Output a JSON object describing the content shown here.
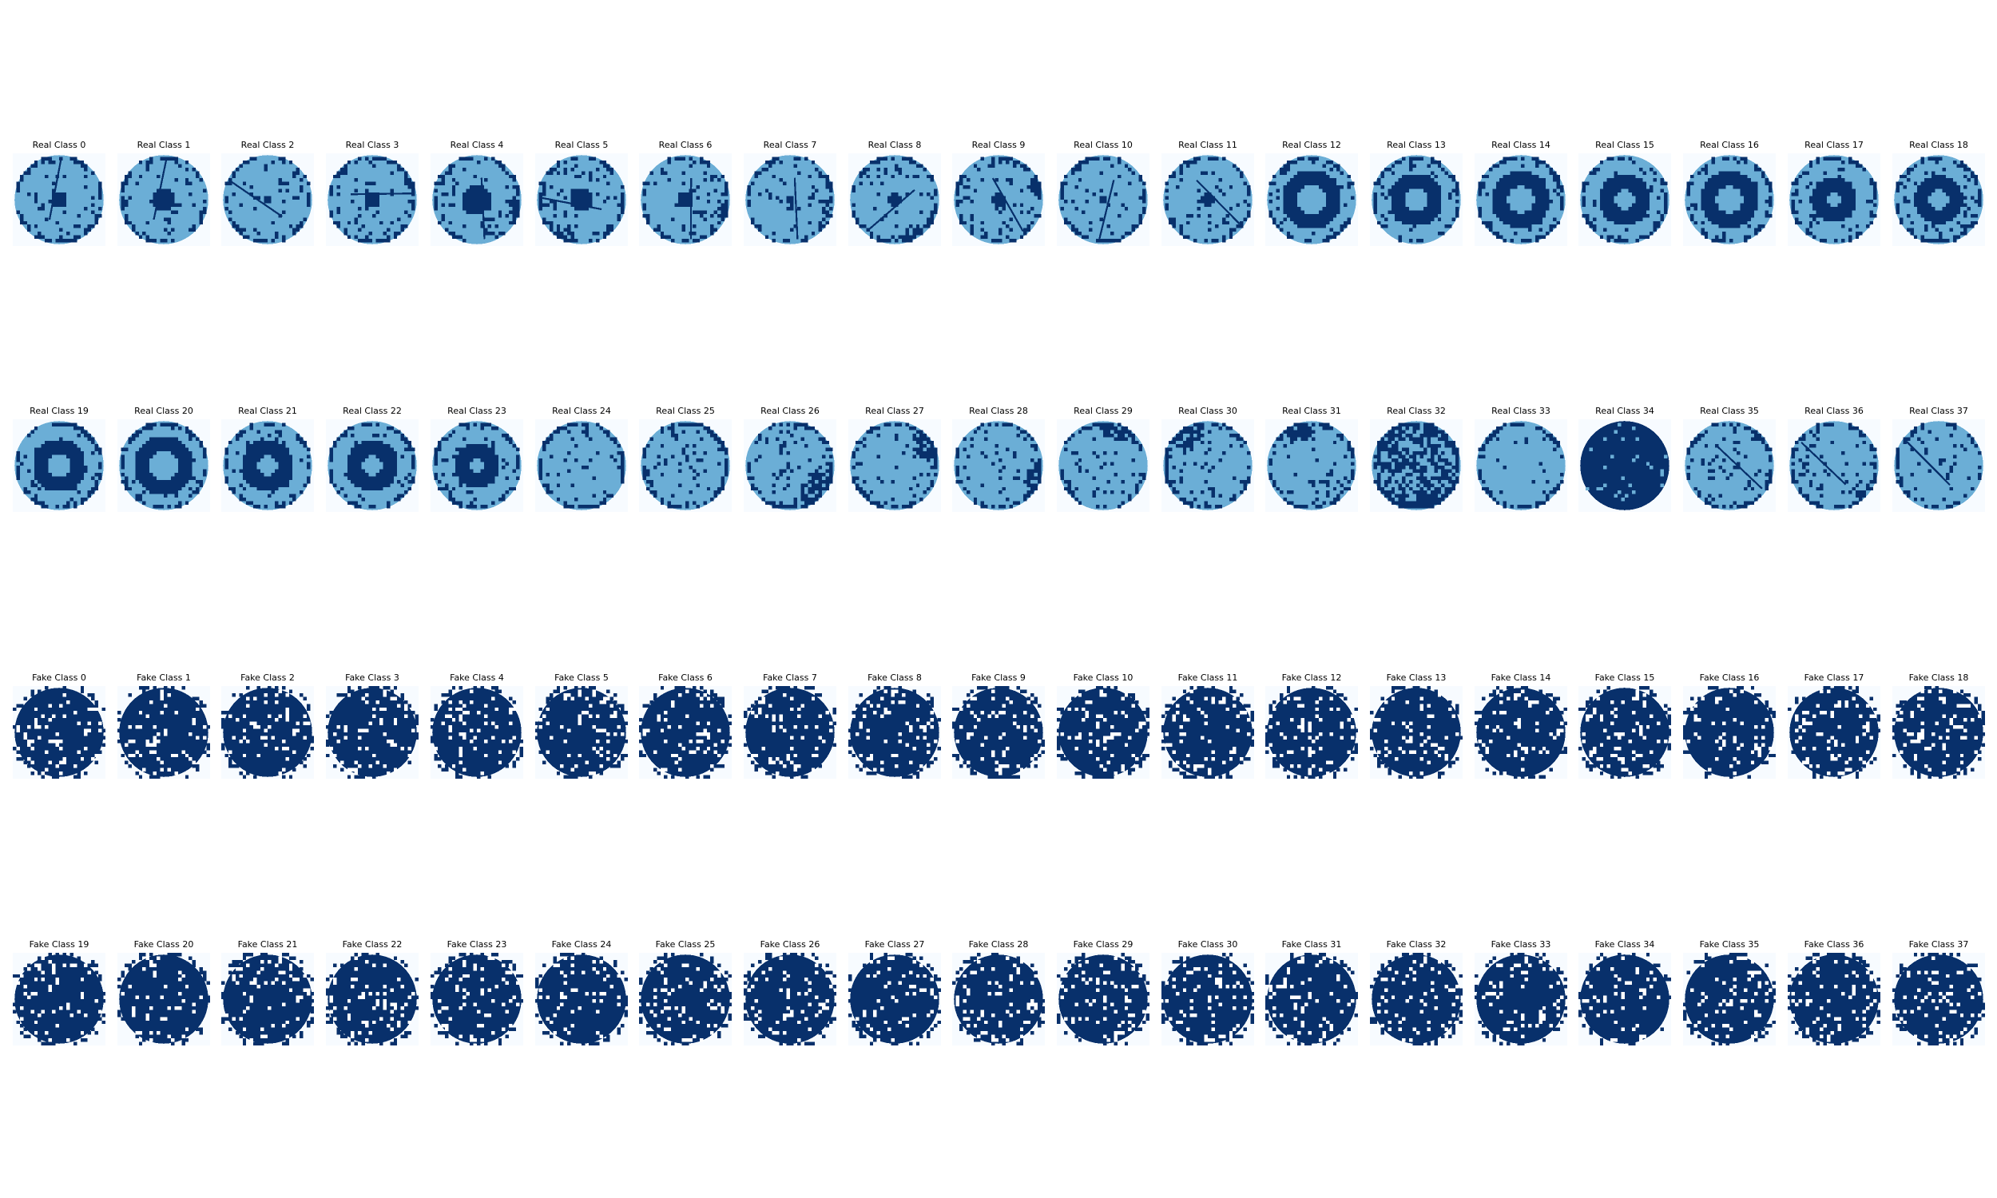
{
  "panels": [
    {
      "title": "Real Class 0",
      "kind": "real",
      "pattern": "center",
      "size": 0.18
    },
    {
      "title": "Real Class 1",
      "kind": "real",
      "pattern": "center",
      "size": 0.28
    },
    {
      "title": "Real Class 2",
      "kind": "real",
      "pattern": "center",
      "size": 0.1
    },
    {
      "title": "Real Class 3",
      "kind": "real",
      "pattern": "center",
      "size": 0.2
    },
    {
      "title": "Real Class 4",
      "kind": "real",
      "pattern": "center-edge",
      "size": 0.34
    },
    {
      "title": "Real Class 5",
      "kind": "real",
      "pattern": "center-edge",
      "size": 0.24
    },
    {
      "title": "Real Class 6",
      "kind": "real",
      "pattern": "center-edge",
      "size": 0.18
    },
    {
      "title": "Real Class 7",
      "kind": "real",
      "pattern": "center-edge",
      "size": 0.12
    },
    {
      "title": "Real Class 8",
      "kind": "real",
      "pattern": "center-edge",
      "size": 0.16
    },
    {
      "title": "Real Class 9",
      "kind": "real",
      "pattern": "center-edge",
      "size": 0.14
    },
    {
      "title": "Real Class 10",
      "kind": "real",
      "pattern": "center",
      "size": 0.12
    },
    {
      "title": "Real Class 11",
      "kind": "real",
      "pattern": "center",
      "size": 0.14
    },
    {
      "title": "Real Class 12",
      "kind": "real",
      "pattern": "donut",
      "size": 0.5
    },
    {
      "title": "Real Class 13",
      "kind": "real",
      "pattern": "donut",
      "size": 0.42
    },
    {
      "title": "Real Class 14",
      "kind": "real",
      "pattern": "donut",
      "size": 0.48
    },
    {
      "title": "Real Class 15",
      "kind": "real",
      "pattern": "donut",
      "size": 0.4
    },
    {
      "title": "Real Class 16",
      "kind": "real",
      "pattern": "donut",
      "size": 0.46
    },
    {
      "title": "Real Class 17",
      "kind": "real",
      "pattern": "donut",
      "size": 0.34
    },
    {
      "title": "Real Class 18",
      "kind": "real",
      "pattern": "donut",
      "size": 0.38
    },
    {
      "title": "Real Class 19",
      "kind": "real",
      "pattern": "donut",
      "size": 0.42
    },
    {
      "title": "Real Class 20",
      "kind": "real",
      "pattern": "donut",
      "size": 0.5
    },
    {
      "title": "Real Class 21",
      "kind": "real",
      "pattern": "donut",
      "size": 0.4
    },
    {
      "title": "Real Class 22",
      "kind": "real",
      "pattern": "donut",
      "size": 0.4
    },
    {
      "title": "Real Class 23",
      "kind": "real",
      "pattern": "donut",
      "size": 0.34
    },
    {
      "title": "Real Class 24",
      "kind": "real",
      "pattern": "none",
      "size": 0
    },
    {
      "title": "Real Class 25",
      "kind": "real",
      "pattern": "none",
      "size": 0
    },
    {
      "title": "Real Class 26",
      "kind": "real",
      "pattern": "edge",
      "size": 0.4
    },
    {
      "title": "Real Class 27",
      "kind": "real",
      "pattern": "edge",
      "size": 0.3
    },
    {
      "title": "Real Class 28",
      "kind": "real",
      "pattern": "edge",
      "size": 0.2
    },
    {
      "title": "Real Class 29",
      "kind": "real",
      "pattern": "edge",
      "size": 0.25
    },
    {
      "title": "Real Class 30",
      "kind": "real",
      "pattern": "edge",
      "size": 0.3
    },
    {
      "title": "Real Class 31",
      "kind": "real",
      "pattern": "edge",
      "size": 0.25
    },
    {
      "title": "Real Class 32",
      "kind": "real",
      "pattern": "random",
      "size": 0.5
    },
    {
      "title": "Real Class 33",
      "kind": "real",
      "pattern": "near-full",
      "size": 0
    },
    {
      "title": "Real Class 34",
      "kind": "real",
      "pattern": "full",
      "size": 1
    },
    {
      "title": "Real Class 35",
      "kind": "real",
      "pattern": "scratch",
      "size": 0.2
    },
    {
      "title": "Real Class 36",
      "kind": "real",
      "pattern": "scratch",
      "size": 0.2
    },
    {
      "title": "Real Class 37",
      "kind": "real",
      "pattern": "scratch",
      "size": 0.2
    },
    {
      "title": "Fake Class 0",
      "kind": "fake"
    },
    {
      "title": "Fake Class 1",
      "kind": "fake"
    },
    {
      "title": "Fake Class 2",
      "kind": "fake"
    },
    {
      "title": "Fake Class 3",
      "kind": "fake"
    },
    {
      "title": "Fake Class 4",
      "kind": "fake"
    },
    {
      "title": "Fake Class 5",
      "kind": "fake"
    },
    {
      "title": "Fake Class 6",
      "kind": "fake"
    },
    {
      "title": "Fake Class 7",
      "kind": "fake"
    },
    {
      "title": "Fake Class 8",
      "kind": "fake"
    },
    {
      "title": "Fake Class 9",
      "kind": "fake"
    },
    {
      "title": "Fake Class 10",
      "kind": "fake"
    },
    {
      "title": "Fake Class 11",
      "kind": "fake"
    },
    {
      "title": "Fake Class 12",
      "kind": "fake"
    },
    {
      "title": "Fake Class 13",
      "kind": "fake"
    },
    {
      "title": "Fake Class 14",
      "kind": "fake"
    },
    {
      "title": "Fake Class 15",
      "kind": "fake"
    },
    {
      "title": "Fake Class 16",
      "kind": "fake"
    },
    {
      "title": "Fake Class 17",
      "kind": "fake"
    },
    {
      "title": "Fake Class 18",
      "kind": "fake"
    },
    {
      "title": "Fake Class 19",
      "kind": "fake"
    },
    {
      "title": "Fake Class 20",
      "kind": "fake"
    },
    {
      "title": "Fake Class 21",
      "kind": "fake"
    },
    {
      "title": "Fake Class 22",
      "kind": "fake"
    },
    {
      "title": "Fake Class 23",
      "kind": "fake"
    },
    {
      "title": "Fake Class 24",
      "kind": "fake"
    },
    {
      "title": "Fake Class 25",
      "kind": "fake"
    },
    {
      "title": "Fake Class 26",
      "kind": "fake"
    },
    {
      "title": "Fake Class 27",
      "kind": "fake"
    },
    {
      "title": "Fake Class 28",
      "kind": "fake"
    },
    {
      "title": "Fake Class 29",
      "kind": "fake"
    },
    {
      "title": "Fake Class 30",
      "kind": "fake"
    },
    {
      "title": "Fake Class 31",
      "kind": "fake"
    },
    {
      "title": "Fake Class 32",
      "kind": "fake"
    },
    {
      "title": "Fake Class 33",
      "kind": "fake"
    },
    {
      "title": "Fake Class 34",
      "kind": "fake"
    },
    {
      "title": "Fake Class 35",
      "kind": "fake"
    },
    {
      "title": "Fake Class 36",
      "kind": "fake"
    },
    {
      "title": "Fake Class 37",
      "kind": "fake"
    }
  ],
  "colors": {
    "background": "#f7fbff",
    "wafer": "#6baed6",
    "defect": "#08306b",
    "speck": "#3a7fc0",
    "fake_hole": "#ffffff"
  }
}
